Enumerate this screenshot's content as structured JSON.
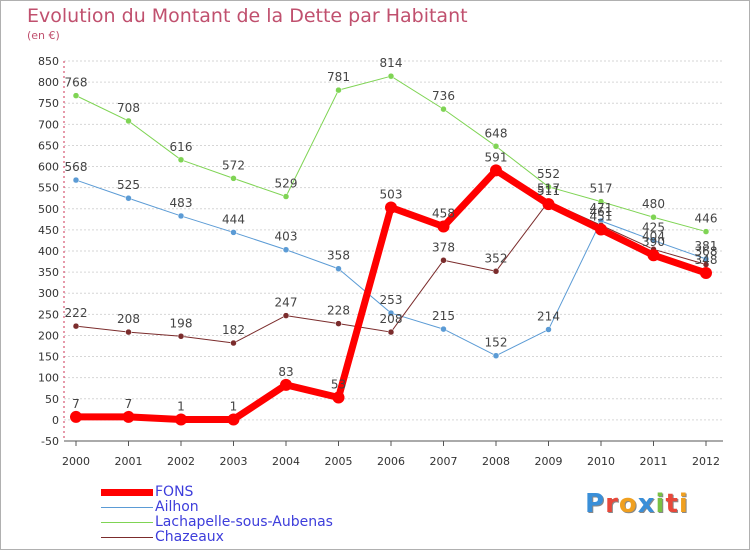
{
  "title": "Evolution du Montant de la Dette par Habitant",
  "subtitle": "(en €)",
  "logo": {
    "text": "Proxiti",
    "letters": [
      {
        "ch": "P",
        "color": "#3a8fd8"
      },
      {
        "ch": "r",
        "color": "#e8483a"
      },
      {
        "ch": "o",
        "color": "#f0a020"
      },
      {
        "ch": "x",
        "color": "#3a8fd8"
      },
      {
        "ch": "i",
        "color": "#79c143"
      },
      {
        "ch": "t",
        "color": "#e8483a"
      },
      {
        "ch": "i",
        "color": "#f0a020"
      }
    ]
  },
  "chart_data": {
    "type": "line",
    "title": "Evolution du Montant de la Dette par Habitant",
    "subtitle": "(en €)",
    "x": [
      "2000",
      "2001",
      "2002",
      "2003",
      "2004",
      "2005",
      "2006",
      "2007",
      "2008",
      "2009",
      "2010",
      "2011",
      "2012"
    ],
    "ylim": [
      -50,
      850
    ],
    "yticks": [
      -50,
      0,
      50,
      100,
      150,
      200,
      250,
      300,
      350,
      400,
      450,
      500,
      550,
      600,
      650,
      700,
      750,
      800,
      850
    ],
    "grid": "horizontal",
    "legend": "bottom-left",
    "series": [
      {
        "name": "Lachapelle-sous-Aubenas",
        "color": "#7fd454",
        "width": 1,
        "values": [
          768,
          708,
          616,
          572,
          529,
          781,
          814,
          736,
          648,
          552,
          517,
          480,
          446
        ]
      },
      {
        "name": "Ailhon",
        "color": "#5b9bd5",
        "width": 1,
        "values": [
          568,
          525,
          483,
          444,
          403,
          358,
          253,
          215,
          152,
          214,
          471,
          425,
          381
        ]
      },
      {
        "name": "Chazeaux",
        "color": "#7b2c2c",
        "width": 1,
        "values": [
          222,
          208,
          198,
          182,
          247,
          228,
          208,
          378,
          352,
          517,
          461,
          404,
          368
        ]
      },
      {
        "name": "FONS",
        "color": "#ff0000",
        "width": 7,
        "values": [
          7,
          7,
          1,
          1,
          83,
          53,
          503,
          458,
          591,
          511,
          451,
          390,
          348
        ]
      }
    ],
    "legend_order": [
      "FONS",
      "Ailhon",
      "Lachapelle-sous-Aubenas",
      "Chazeaux"
    ]
  }
}
